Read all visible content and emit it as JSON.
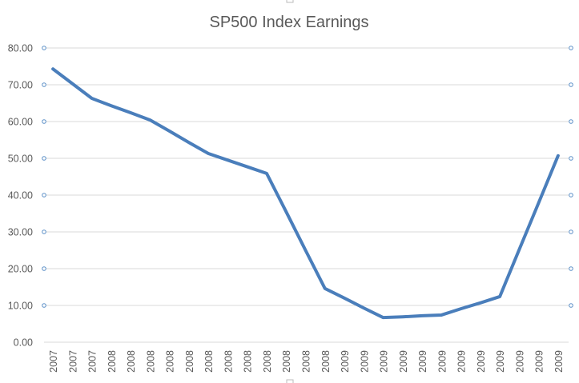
{
  "chart_data": {
    "type": "line",
    "title": "SP500 Index Earnings",
    "xlabel": "",
    "ylabel": "",
    "ylim": [
      0,
      80
    ],
    "yticks": [
      "0.00",
      "10.00",
      "20.00",
      "30.00",
      "40.00",
      "50.00",
      "60.00",
      "70.00",
      "80.00"
    ],
    "grid": true,
    "legend": "none",
    "categories": [
      "2007",
      "2007",
      "2007",
      "2008",
      "2008",
      "2008",
      "2008",
      "2008",
      "2008",
      "2008",
      "2008",
      "2008",
      "2008",
      "2008",
      "2008",
      "2009",
      "2009",
      "2009",
      "2009",
      "2009",
      "2009",
      "2009",
      "2009",
      "2009",
      "2009",
      "2009",
      "2009"
    ],
    "series": [
      {
        "name": "SP500 Index Earnings",
        "color": "#4a7ebb",
        "values": [
          74.3,
          70.3,
          66.3,
          64.3,
          62.4,
          60.4,
          57.4,
          54.3,
          51.3,
          49.5,
          47.7,
          45.9,
          35.5,
          25.0,
          14.6,
          12.0,
          9.3,
          6.7,
          6.9,
          7.2,
          7.4,
          9.1,
          10.7,
          12.4,
          25.2,
          37.9,
          50.7
        ]
      }
    ]
  }
}
